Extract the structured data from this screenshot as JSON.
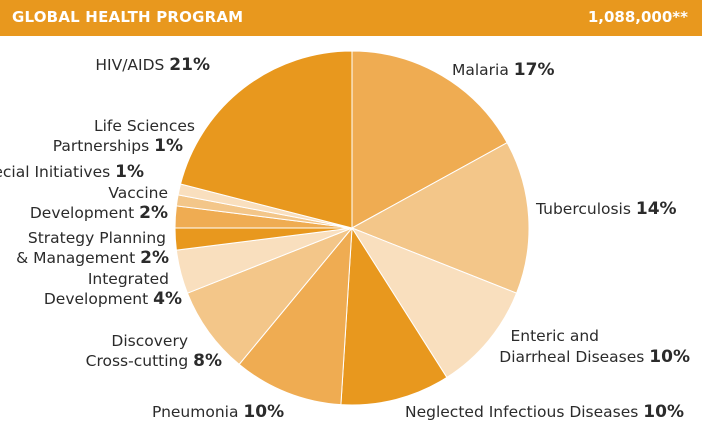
{
  "header": {
    "title": "GLOBAL HEALTH PROGRAM",
    "total": "1,088,000**"
  },
  "colors": {
    "header_bg": "#E8981E",
    "c1": "#E8981E",
    "c2": "#EFAC52",
    "c3": "#F3C689",
    "c4": "#F9DFBE"
  },
  "chart_data": {
    "type": "pie",
    "slices": [
      {
        "name": "Malaria",
        "label_lines": [
          "Malaria"
        ],
        "pct_label": "17%",
        "value": 17,
        "color": "#EFAC52"
      },
      {
        "name": "Tuberculosis",
        "label_lines": [
          "Tuberculosis"
        ],
        "pct_label": "14%",
        "value": 14,
        "color": "#F3C689"
      },
      {
        "name": "Enteric and Diarrheal Diseases",
        "label_lines": [
          "Enteric and",
          "Diarrheal Diseases"
        ],
        "pct_label": "10%",
        "value": 10,
        "color": "#F9DFBE"
      },
      {
        "name": "Neglected Infectious Diseases",
        "label_lines": [
          "Neglected Infectious Diseases"
        ],
        "pct_label": "10%",
        "value": 10,
        "color": "#E8981E"
      },
      {
        "name": "Pneumonia",
        "label_lines": [
          "Pneumonia"
        ],
        "pct_label": "10%",
        "value": 10,
        "color": "#EFAC52"
      },
      {
        "name": "Discovery Cross-cutting",
        "label_lines": [
          "Discovery",
          "Cross-cutting"
        ],
        "pct_label": "8%",
        "value": 8,
        "color": "#F3C689"
      },
      {
        "name": "Integrated Development",
        "label_lines": [
          "Integrated",
          "Development"
        ],
        "pct_label": "4%",
        "value": 4,
        "color": "#F9DFBE"
      },
      {
        "name": "Strategy Planning & Management",
        "label_lines": [
          "Strategy Planning",
          "& Management"
        ],
        "pct_label": "2%",
        "value": 2,
        "color": "#E8981E"
      },
      {
        "name": "Vaccine Development",
        "label_lines": [
          "Vaccine",
          "Development"
        ],
        "pct_label": "2%",
        "value": 2,
        "color": "#EFAC52"
      },
      {
        "name": "Special Initiatives",
        "label_lines": [
          "Special Initiatives"
        ],
        "pct_label": "1%",
        "value": 1,
        "color": "#F3C689"
      },
      {
        "name": "Life Sciences Partnerships",
        "label_lines": [
          "Life Sciences",
          "Partnerships"
        ],
        "pct_label": "1%",
        "value": 1,
        "color": "#F9DFBE"
      },
      {
        "name": "HIV/AIDS",
        "label_lines": [
          "HIV/AIDS"
        ],
        "pct_label": "21%",
        "value": 21,
        "color": "#E8981E"
      }
    ]
  }
}
